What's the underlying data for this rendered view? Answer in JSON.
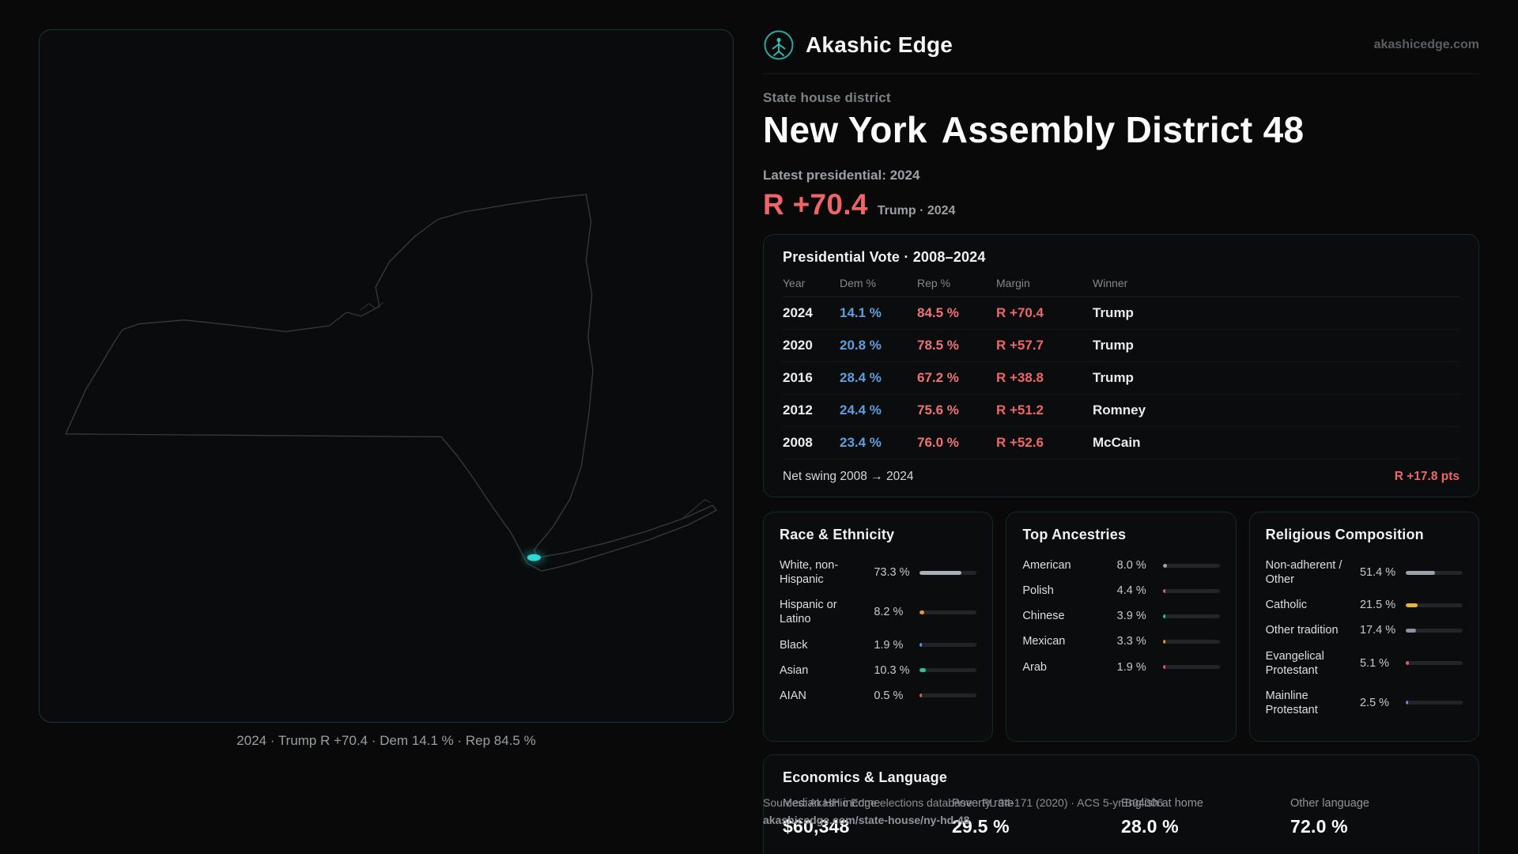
{
  "brand": {
    "name": "Akashic Edge",
    "site": "akashicedge.com"
  },
  "map": {
    "caption": "2024 · Trump R +70.4 · Dem 14.1 % · Rep 84.5 %",
    "district_highlight_color": "#2fd8d2"
  },
  "header": {
    "kicker": "State house district",
    "title_state": "New York",
    "title_rest": "Assembly District 48",
    "latest_label": "Latest presidential: 2024",
    "margin": "R +70.4",
    "margin_note": "Trump · 2024"
  },
  "presidential": {
    "title": "Presidential Vote · 2008–2024",
    "columns": [
      "Year",
      "Dem %",
      "Rep %",
      "Margin",
      "Winner"
    ],
    "rows": [
      {
        "year": "2024",
        "dem": "14.1 %",
        "rep": "84.5 %",
        "margin": "R +70.4",
        "winner": "Trump"
      },
      {
        "year": "2020",
        "dem": "20.8 %",
        "rep": "78.5 %",
        "margin": "R +57.7",
        "winner": "Trump"
      },
      {
        "year": "2016",
        "dem": "28.4 %",
        "rep": "67.2 %",
        "margin": "R +38.8",
        "winner": "Trump"
      },
      {
        "year": "2012",
        "dem": "24.4 %",
        "rep": "75.6 %",
        "margin": "R +51.2",
        "winner": "Romney"
      },
      {
        "year": "2008",
        "dem": "23.4 %",
        "rep": "76.0 %",
        "margin": "R +52.6",
        "winner": "McCain"
      }
    ],
    "net_swing_label": "Net swing 2008 → 2024",
    "net_swing_value": "R +17.8 pts"
  },
  "panels": [
    {
      "title": "Race & Ethnicity",
      "rows": [
        {
          "label": "White, non-Hispanic",
          "value": "73.3 %",
          "pct": 73.3,
          "color": "#a9b0ba"
        },
        {
          "label": "Hispanic or Latino",
          "value": "8.2 %",
          "pct": 8.2,
          "color": "#e8923f"
        },
        {
          "label": "Black",
          "value": "1.9 %",
          "pct": 1.9,
          "color": "#5b8def"
        },
        {
          "label": "Asian",
          "value": "10.3 %",
          "pct": 10.3,
          "color": "#2fbf9a"
        },
        {
          "label": "AIAN",
          "value": "0.5 %",
          "pct": 0.5,
          "color": "#e05c5c"
        }
      ]
    },
    {
      "title": "Top Ancestries",
      "rows": [
        {
          "label": "American",
          "value": "8.0 %",
          "pct": 8.0,
          "color": "#9aa3ad"
        },
        {
          "label": "Polish",
          "value": "4.4 %",
          "pct": 4.4,
          "color": "#c96a8f"
        },
        {
          "label": "Chinese",
          "value": "3.9 %",
          "pct": 3.9,
          "color": "#2fbf9a"
        },
        {
          "label": "Mexican",
          "value": "3.3 %",
          "pct": 3.3,
          "color": "#e8923f"
        },
        {
          "label": "Arab",
          "value": "1.9 %",
          "pct": 1.9,
          "color": "#e05c5c"
        }
      ]
    },
    {
      "title": "Religious Composition",
      "rows": [
        {
          "label": "Non-adherent / Other",
          "value": "51.4 %",
          "pct": 51.4,
          "color": "#9aa3ad"
        },
        {
          "label": "Catholic",
          "value": "21.5 %",
          "pct": 21.5,
          "color": "#e3b341"
        },
        {
          "label": "Other tradition",
          "value": "17.4 %",
          "pct": 17.4,
          "color": "#8a93a0"
        },
        {
          "label": "Evangelical Protestant",
          "value": "5.1 %",
          "pct": 5.1,
          "color": "#e05c5c"
        },
        {
          "label": "Mainline Protestant",
          "value": "2.5 %",
          "pct": 2.5,
          "color": "#5b8def"
        }
      ]
    }
  ],
  "economics": {
    "title": "Economics & Language",
    "stats": [
      {
        "label": "Median HH income",
        "value": "$60,348"
      },
      {
        "label": "Poverty rate",
        "value": "29.5 %"
      },
      {
        "label": "English at home",
        "value": "28.0 %"
      },
      {
        "label": "Other language",
        "value": "72.0 %"
      }
    ]
  },
  "footer": {
    "sources": "Sources: Akashic Edge elections database · PL 94-171 (2020) · ACS 5-yr B04006",
    "permalink": "akashicedge.com/state-house/ny-hd-48"
  },
  "colors": {
    "accent_teal": "#2aa9a3",
    "rep_red": "#ee6767",
    "dem_blue": "#5e9fe0",
    "district_cyan": "#2fd8d2"
  }
}
